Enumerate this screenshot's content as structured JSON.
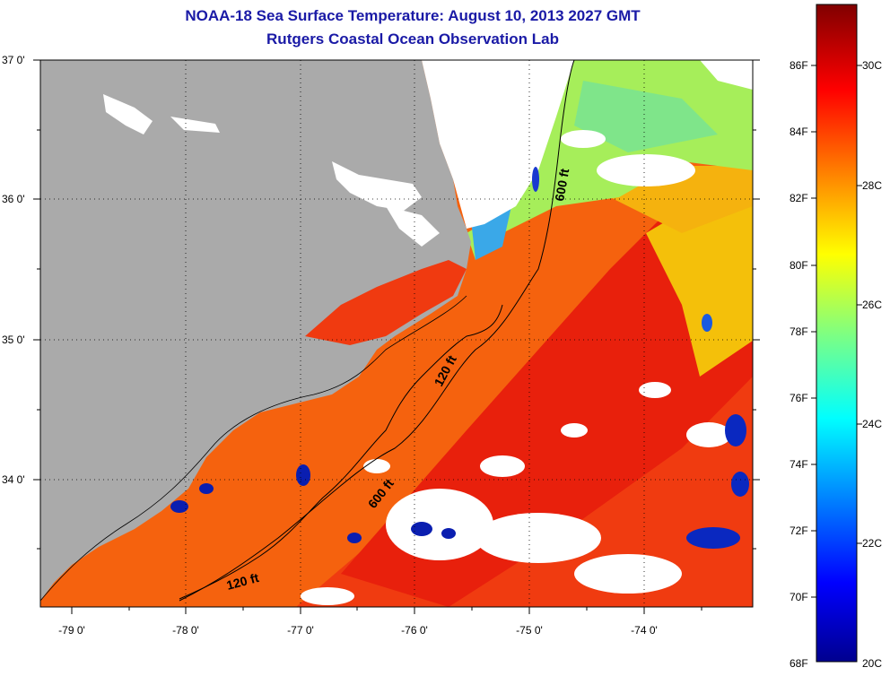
{
  "title": {
    "line1": "NOAA-18 Sea Surface Temperature:  August 10, 2013 2027 GMT",
    "line2": "Rutgers Coastal Ocean Observation Lab"
  },
  "map": {
    "latitude_labels": [
      {
        "value": 37,
        "label": "37 0'"
      },
      {
        "value": 36,
        "label": "36 0'"
      },
      {
        "value": 35,
        "label": "35 0'"
      },
      {
        "value": 34,
        "label": "34 0'"
      }
    ],
    "longitude_labels": [
      {
        "value": -79,
        "label": "-79 0'"
      },
      {
        "value": -78,
        "label": "-78 0'"
      },
      {
        "value": -77,
        "label": "-77 0'"
      },
      {
        "value": -76,
        "label": "-76 0'"
      },
      {
        "value": -75,
        "label": "-75 0'"
      },
      {
        "value": -74,
        "label": "-74 0'"
      }
    ],
    "lat_range": [
      33.25,
      37.0
    ],
    "lon_range": [
      -79.3,
      -73.2
    ],
    "contour_labels": [
      "600 ft",
      "120 ft",
      "600 ft",
      "120 ft"
    ],
    "colors": {
      "land": "#aaaaaa",
      "cloud": "#ffffff",
      "warm_water": "#f53a10",
      "hot_water": "#e8150a",
      "cool_water": "#9ef05a",
      "cold_patch": "#0a1eb0"
    }
  },
  "colorbar": {
    "fahrenheit_ticks": [
      "86F",
      "84F",
      "82F",
      "80F",
      "78F",
      "76F",
      "74F",
      "72F",
      "70F",
      "68F"
    ],
    "celsius_ticks": [
      "30C",
      "28C",
      "26C",
      "24C",
      "22C",
      "20C"
    ],
    "temperature_range_c": [
      20,
      31.2
    ]
  }
}
